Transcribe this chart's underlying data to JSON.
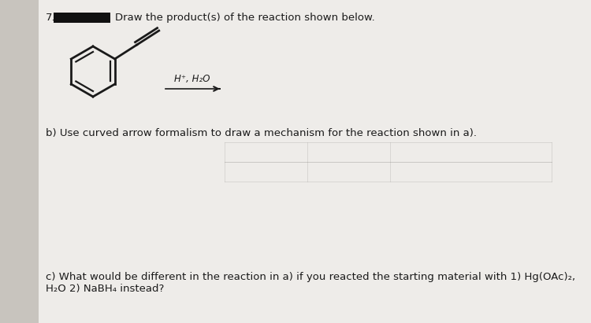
{
  "background_color": "#c8c4be",
  "paper_color": "#eeece9",
  "question_number": "7.",
  "redacted_box_color": "#111111",
  "part_a_text": "Draw the product(s) of the reaction shown below.",
  "reagent_text": "H⁺, H₂O",
  "part_b_text": "b) Use curved arrow formalism to draw a mechanism for the reaction shown in a).",
  "part_c_text": "c) What would be different in the reaction in a) if you reacted the starting material with 1) Hg(OAc)₂,",
  "part_c_text2": "H₂O 2) NaBH₄ instead?",
  "font_size_main": 9.5,
  "text_color": "#1a1a1a",
  "line_color": "#1a1a1a",
  "grid_line_color": "#aaa8a4"
}
